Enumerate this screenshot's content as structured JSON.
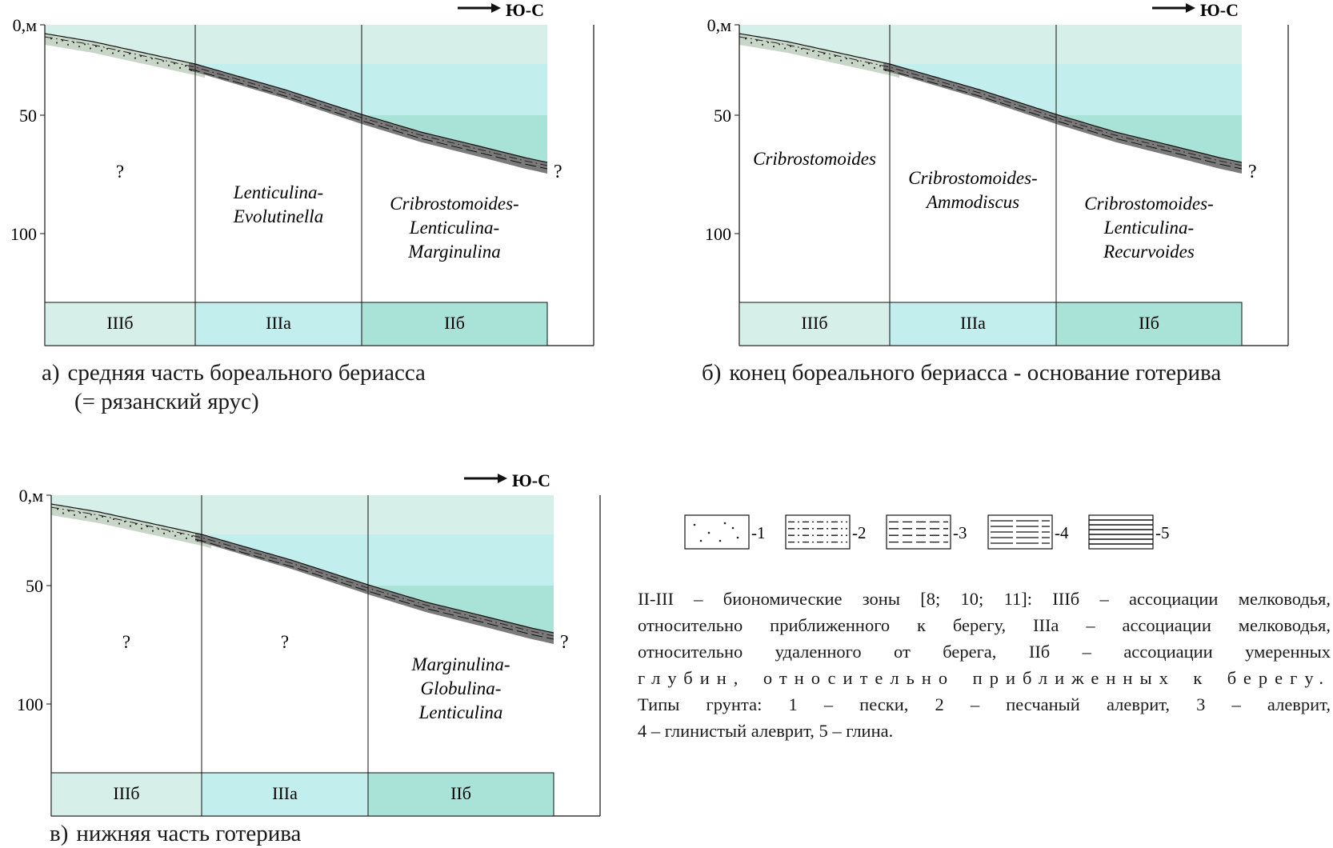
{
  "direction_label": "Ю-С",
  "depth_axis": {
    "ticks": [
      "0,м",
      "50",
      "100"
    ]
  },
  "question_mark": "?",
  "panels": [
    {
      "key": "a",
      "caption_label": "а)",
      "caption_line1": "средняя часть бореального бериасса",
      "caption_line2": "(= рязанский ярус)",
      "zones": [
        "IIIб",
        "IIIа",
        "IIб"
      ],
      "assemblages": [
        "?",
        "Lenticulina-\nEvolutinella",
        "Cribrostomoides-\nLenticulina-\nMarginulina"
      ]
    },
    {
      "key": "b",
      "caption_label": "б)",
      "caption_line1": "конец бореального бериасса - основание готерива",
      "caption_line2": "",
      "zones": [
        "IIIб",
        "IIIа",
        "IIб"
      ],
      "assemblages": [
        "Cribrostomoides",
        "Cribrostomoides-\nAmmodiscus",
        "Cribrostomoides-\nLenticulina-\nRecurvoides"
      ]
    },
    {
      "key": "c",
      "caption_label": "в)",
      "caption_line1": "нижняя часть готерива",
      "caption_line2": "",
      "zones": [
        "IIIб",
        "IIIа",
        "IIб"
      ],
      "assemblages": [
        "?",
        "?",
        "Marginulina-\nGlobulina-\nLenticulina"
      ]
    }
  ],
  "legend": {
    "items": [
      "-1",
      "-2",
      "-3",
      "-4",
      "-5"
    ],
    "note_lines": [
      "II-III – биономические зоны [8; 10; 11]: IIIб – ассоциации мелководья,",
      "относительно приближенного к берегу, IIIа – ассоциации мелководья,",
      "относительно удаленного от берега, IIб – ассоциации умеренных",
      "глубин, относительно приближенных к берегу.",
      "Типы грунта: 1 – пески, 2 – песчаный алеврит, 3 – алеврит,",
      "4 – глинистый алеврит, 5 – глина."
    ]
  },
  "colors": {
    "zone_IIIb": "#d6efe9",
    "zone_IIIa": "#c3eeee",
    "zone_IIb": "#a9e3d7",
    "sand": "#c8d6c8",
    "mud": "#7a7a7a"
  }
}
